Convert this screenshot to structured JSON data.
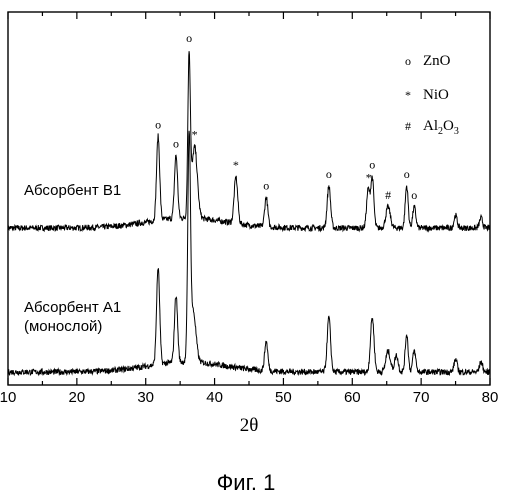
{
  "chart_data": {
    "type": "line",
    "title": "",
    "caption": "Фиг. 1",
    "xlabel": "2θ",
    "ylabel": "",
    "xlim": [
      10,
      80
    ],
    "x_ticks": [
      10,
      20,
      30,
      40,
      50,
      60,
      70,
      80
    ],
    "y_ticks": "none",
    "grid": false,
    "legend_placement": "top-right",
    "legend": [
      {
        "marker": "o",
        "label": "ZnO"
      },
      {
        "marker": "*",
        "label": "NiO"
      },
      {
        "marker": "#",
        "label": "Al",
        "sub": "2",
        "label2": "O",
        "sub2": "3"
      }
    ],
    "series": [
      {
        "name": "Абсорбент В1",
        "baseline": 0.2,
        "peaks": [
          {
            "x": 31.8,
            "h": 1.0,
            "w": 0.35
          },
          {
            "x": 34.4,
            "h": 0.75,
            "w": 0.35
          },
          {
            "x": 36.3,
            "h": 1.9,
            "w": 0.28
          },
          {
            "x": 37.1,
            "h": 0.85,
            "w": 0.6
          },
          {
            "x": 43.1,
            "h": 0.55,
            "w": 0.4
          },
          {
            "x": 47.5,
            "h": 0.35,
            "w": 0.35
          },
          {
            "x": 56.6,
            "h": 0.5,
            "w": 0.38
          },
          {
            "x": 62.3,
            "h": 0.45,
            "w": 0.35
          },
          {
            "x": 62.9,
            "h": 0.6,
            "w": 0.35
          },
          {
            "x": 65.2,
            "h": 0.25,
            "w": 0.5
          },
          {
            "x": 67.9,
            "h": 0.5,
            "w": 0.33
          },
          {
            "x": 69.0,
            "h": 0.25,
            "w": 0.35
          },
          {
            "x": 75.0,
            "h": 0.15,
            "w": 0.35
          },
          {
            "x": 78.7,
            "h": 0.12,
            "w": 0.35
          }
        ],
        "peak_markers": [
          {
            "x": 31.8,
            "symbol": "o"
          },
          {
            "x": 34.4,
            "symbol": "o"
          },
          {
            "x": 36.3,
            "symbol": "o"
          },
          {
            "x": 37.1,
            "symbol": "*"
          },
          {
            "x": 43.1,
            "symbol": "*"
          },
          {
            "x": 47.5,
            "symbol": "o"
          },
          {
            "x": 56.6,
            "symbol": "o"
          },
          {
            "x": 62.4,
            "symbol": "*"
          },
          {
            "x": 62.9,
            "symbol": "o"
          },
          {
            "x": 65.2,
            "symbol": "#"
          },
          {
            "x": 67.9,
            "symbol": "o"
          },
          {
            "x": 69.0,
            "symbol": "o"
          }
        ]
      },
      {
        "name": "Абсорбент А1 (монослой)",
        "label_lines": [
          "Абсорбент А1",
          "(монослой)"
        ],
        "baseline": 0.1,
        "peaks": [
          {
            "x": 31.8,
            "h": 1.15,
            "w": 0.35
          },
          {
            "x": 34.4,
            "h": 0.8,
            "w": 0.35
          },
          {
            "x": 36.3,
            "h": 2.6,
            "w": 0.3
          },
          {
            "x": 36.9,
            "h": 0.6,
            "w": 0.6
          },
          {
            "x": 47.5,
            "h": 0.35,
            "w": 0.35
          },
          {
            "x": 56.6,
            "h": 0.65,
            "w": 0.38
          },
          {
            "x": 62.9,
            "h": 0.65,
            "w": 0.4
          },
          {
            "x": 65.2,
            "h": 0.25,
            "w": 0.5
          },
          {
            "x": 66.4,
            "h": 0.2,
            "w": 0.4
          },
          {
            "x": 67.9,
            "h": 0.45,
            "w": 0.33
          },
          {
            "x": 69.0,
            "h": 0.25,
            "w": 0.35
          },
          {
            "x": 75.0,
            "h": 0.15,
            "w": 0.35
          },
          {
            "x": 78.7,
            "h": 0.12,
            "w": 0.35
          }
        ]
      }
    ]
  }
}
